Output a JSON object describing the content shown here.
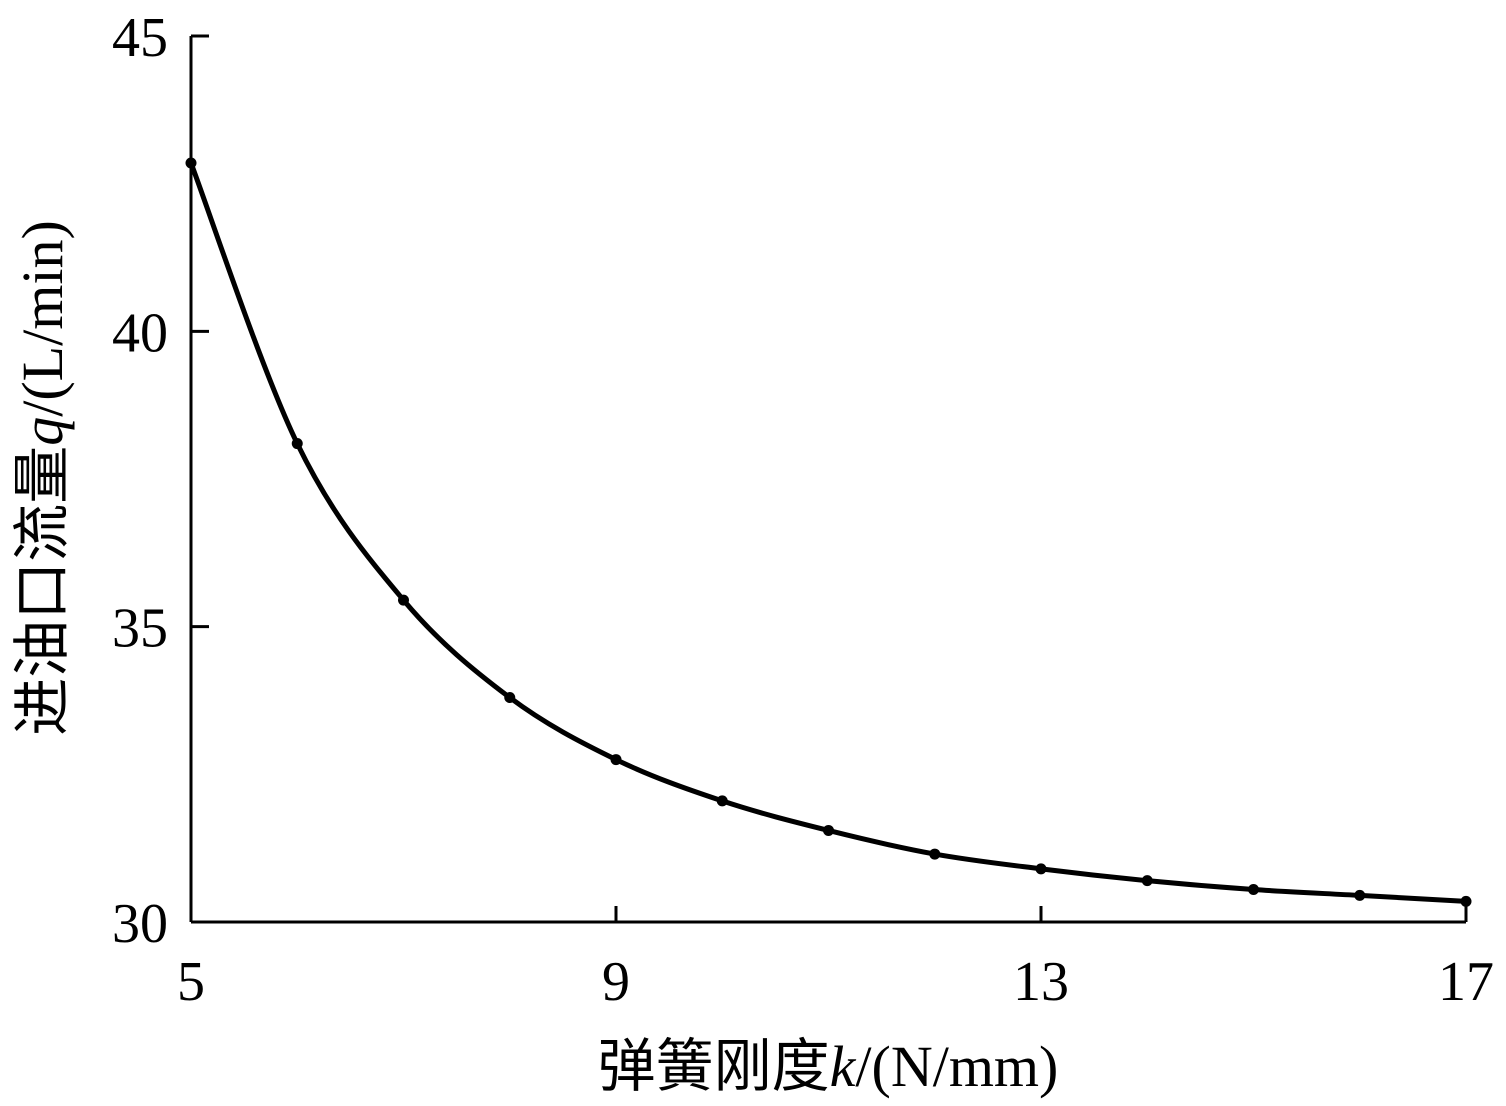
{
  "chart_data": {
    "type": "line",
    "title": "",
    "xlabel": {
      "prefix": "弹簧刚度",
      "var": "k",
      "unit": "/(N/mm)"
    },
    "ylabel": {
      "prefix": "进油口流量",
      "var": "q",
      "unit": "/(L/min)"
    },
    "xlim": [
      5,
      17
    ],
    "ylim": [
      30,
      45
    ],
    "xticks": [
      5,
      9,
      13,
      17
    ],
    "yticks": [
      30,
      35,
      40,
      45
    ],
    "grid": false,
    "legend": "none",
    "series": [
      {
        "x": [
          5,
          6,
          7,
          8,
          9,
          10,
          11,
          12,
          13,
          14,
          15,
          16,
          17
        ],
        "y": [
          42.85,
          38.1,
          35.45,
          33.8,
          32.75,
          32.05,
          31.55,
          31.15,
          30.9,
          30.7,
          30.55,
          30.45,
          30.35
        ]
      }
    ]
  }
}
